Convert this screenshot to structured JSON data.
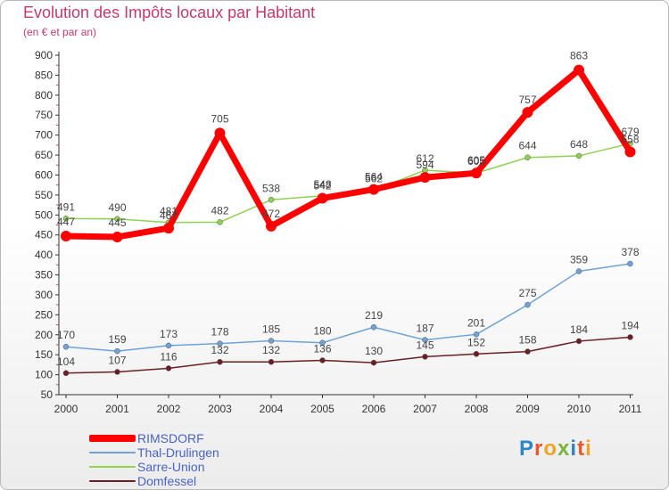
{
  "title": "Evolution des Impôts locaux par Habitant",
  "subtitle": "(en € et par an)",
  "logo": {
    "text": "Proxiti"
  },
  "chart_data": {
    "type": "line",
    "title": "Evolution des Impôts locaux par Habitant",
    "subtitle": "(en € et par an)",
    "x": [
      "2000",
      "2001",
      "2002",
      "2003",
      "2004",
      "2005",
      "2006",
      "2007",
      "2008",
      "2009",
      "2010",
      "2011"
    ],
    "yticks": [
      "50",
      "100",
      "150",
      "200",
      "250",
      "300",
      "350",
      "400",
      "450",
      "500",
      "550",
      "600",
      "650",
      "700",
      "750",
      "800",
      "850",
      "900"
    ],
    "ylim": [
      50,
      900
    ],
    "grid": false,
    "legend_position": "bottom-left",
    "series": [
      {
        "name": "RIMSDORF",
        "color": "#ff0000",
        "values": [
          447,
          445,
          467,
          705,
          472,
          542,
          564,
          594,
          605,
          757,
          863,
          658
        ]
      },
      {
        "name": "Thal-Drulingen",
        "color": "#6ea3d8",
        "values": [
          170,
          159,
          173,
          178,
          185,
          180,
          219,
          187,
          201,
          275,
          359,
          378
        ]
      },
      {
        "name": "Sarre-Union",
        "color": "#8cd34f",
        "values": [
          491,
          490,
          481,
          482,
          538,
          548,
          562,
          612,
          605,
          644,
          648,
          679
        ]
      },
      {
        "name": "Domfessel",
        "color": "#6b1e24",
        "values": [
          104,
          107,
          116,
          132,
          132,
          136,
          130,
          145,
          152,
          158,
          184,
          194
        ]
      }
    ]
  }
}
